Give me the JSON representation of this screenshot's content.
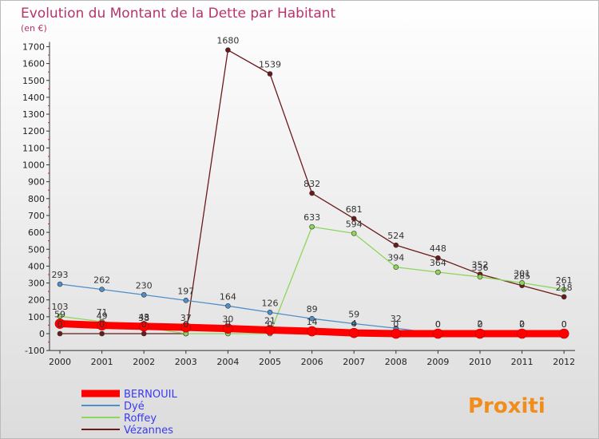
{
  "chart_data": {
    "type": "line",
    "title": "Evolution du Montant de la Dette par Habitant",
    "subtitle": "(en €)",
    "x": [
      "2000",
      "2001",
      "2002",
      "2003",
      "2004",
      "2005",
      "2006",
      "2007",
      "2008",
      "2009",
      "2010",
      "2011",
      "2012"
    ],
    "ylim": [
      -100,
      1700
    ],
    "yticks": [
      -100,
      0,
      100,
      200,
      300,
      400,
      500,
      600,
      700,
      800,
      900,
      1000,
      1100,
      1200,
      1300,
      1400,
      1500,
      1600,
      1700
    ],
    "grid": false,
    "legend_position": "bottom-left",
    "series": [
      {
        "name": "BERNOUIL",
        "color": "#ff0000",
        "values": [
          59,
          49,
          43,
          37,
          30,
          21,
          14,
          4,
          0,
          0,
          0,
          0,
          0
        ]
      },
      {
        "name": "Dyé",
        "color": "#4f8fc8",
        "values": [
          293,
          262,
          230,
          197,
          164,
          126,
          89,
          59,
          32,
          0,
          2,
          2,
          0
        ]
      },
      {
        "name": "Roffey",
        "color": "#8dd65a",
        "values": [
          103,
          71,
          38,
          0,
          0,
          0,
          633,
          594,
          394,
          364,
          336,
          301,
          261
        ]
      },
      {
        "name": "Vézannes",
        "color": "#6b1a1a",
        "values": [
          0,
          0,
          0,
          0,
          1680,
          1539,
          832,
          681,
          524,
          448,
          352,
          285,
          218
        ]
      }
    ]
  },
  "logo": {
    "text": "Proxiti"
  }
}
